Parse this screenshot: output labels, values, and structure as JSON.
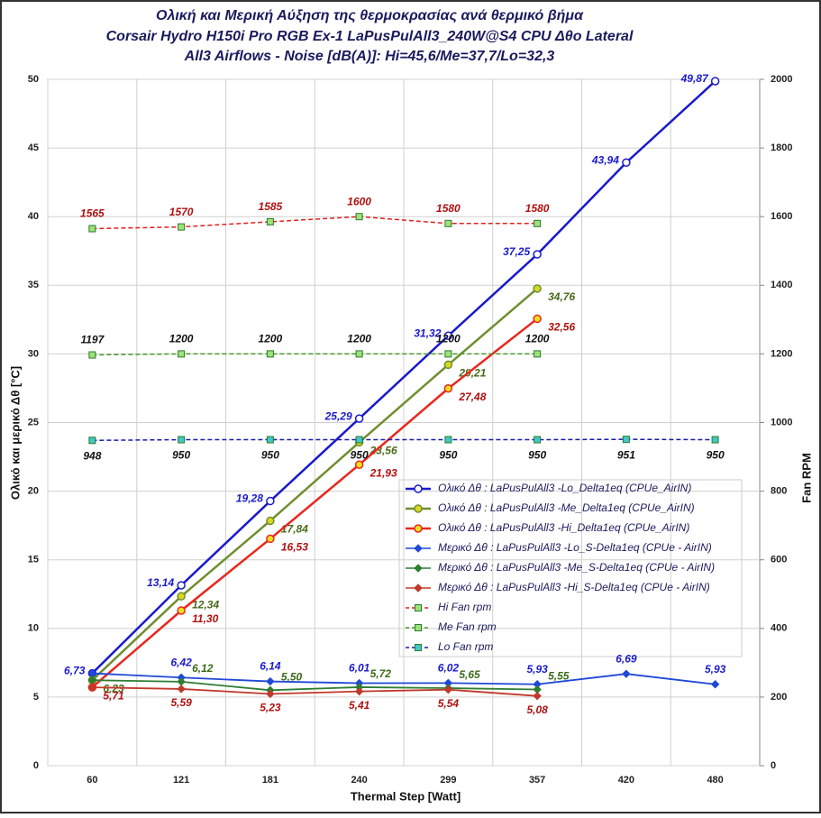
{
  "chart_data": {
    "type": "line",
    "title": [
      "Ολική και Μερική Αύξηση της θερμοκρασίας ανά θερμικό βήμα",
      "Corsair Hydro H150i Pro RGB  Ex-1   LaPusPulAll3_240W@S4  CPU  Δθο Lateral",
      "All3  Airflows  -  Noise [dB(A)]: Hi=45,6/Me=37,7/Lo=32,3"
    ],
    "xlabel": "Thermal Step [Watt]",
    "ylabel": "Ολικό και μερικό  Δθ  [°C]",
    "y2label": "Fan RPM",
    "categories": [
      "60",
      "121",
      "181",
      "240",
      "299",
      "357",
      "420",
      "480"
    ],
    "ylim": [
      0,
      50
    ],
    "yticks": [
      0,
      5,
      10,
      15,
      20,
      25,
      30,
      35,
      40,
      45,
      50
    ],
    "y2lim": [
      0,
      2000
    ],
    "y2ticks": [
      0,
      200,
      400,
      600,
      800,
      1000,
      1200,
      1400,
      1600,
      1800,
      2000
    ],
    "series": [
      {
        "name": "Ολικό Δθ : LaPusPulAll3 -Lo_Delta1eq (CPUe_AirIN)",
        "color": "#1a1acc",
        "marker": "circle",
        "values": [
          6.73,
          13.14,
          19.28,
          25.29,
          31.32,
          37.25,
          43.94,
          49.87
        ],
        "value_labels": [
          "6,73",
          "13,14",
          "19,28",
          "25,29",
          "31,32",
          "37,25",
          "43,94",
          "49,87"
        ]
      },
      {
        "name": "Ολικό Δθ : LaPusPulAll3 -Me_Delta1eq (CPUe_AirIN)",
        "color": "#6f8f2f",
        "marker": "circle",
        "values": [
          6.23,
          12.34,
          17.84,
          23.56,
          29.21,
          34.76,
          null,
          null
        ],
        "value_labels": [
          "6,23",
          "12,34",
          "17,84",
          "23,56",
          "29,21",
          "34,76",
          null,
          null
        ]
      },
      {
        "name": "Ολικό Δθ : LaPusPulAll3 -Hi_Delta1eq (CPUe_AirIN)",
        "color": "#e8281e",
        "marker": "circle",
        "values": [
          5.71,
          11.3,
          16.53,
          21.93,
          27.48,
          32.56,
          null,
          null
        ],
        "value_labels": [
          "5,71",
          "11,30",
          "16,53",
          "21,93",
          "27,48",
          "32,56",
          null,
          null
        ]
      },
      {
        "name": "Μερικό Δθ : LaPusPulAll3 -Lo_S-Delta1eq (CPUe - AirIN)",
        "color": "#1f48d6",
        "marker": "diamond",
        "values": [
          6.73,
          6.42,
          6.14,
          6.01,
          6.02,
          5.93,
          6.69,
          5.93
        ],
        "value_labels": [
          null,
          "6,42",
          "6,14",
          "6,01",
          "6,02",
          "5,93",
          "6,69",
          "5,93"
        ]
      },
      {
        "name": "Μερικό Δθ : LaPusPulAll3 -Me_S-Delta1eq (CPUe - AirIN)",
        "color": "#2e7d32",
        "marker": "diamond",
        "values": [
          6.23,
          6.12,
          5.5,
          5.72,
          5.65,
          5.55,
          null,
          null
        ],
        "value_labels": [
          null,
          "6,12",
          "5,50",
          "5,72",
          "5,65",
          "5,55",
          null,
          null
        ]
      },
      {
        "name": "Μερικό Δθ : LaPusPulAll3 -Hi_S-Delta1eq (CPUe - AirIN)",
        "color": "#c0392b",
        "marker": "diamond",
        "values": [
          5.71,
          5.59,
          5.23,
          5.41,
          5.54,
          5.08,
          null,
          null
        ],
        "value_labels": [
          null,
          "5,59",
          "5,23",
          "5,41",
          "5,54",
          "5,08",
          null,
          null
        ]
      },
      {
        "name": "Hi Fan  rpm",
        "color": "#e02020",
        "marker": "square",
        "dashed": true,
        "axis": "y2",
        "values": [
          1565,
          1570,
          1585,
          1600,
          1580,
          1580,
          null,
          null
        ]
      },
      {
        "name": "Me Fan  rpm",
        "color": "#4a9a2a",
        "marker": "square",
        "dashed": true,
        "axis": "y2",
        "values": [
          1197,
          1200,
          1200,
          1200,
          1200,
          1200,
          null,
          null
        ]
      },
      {
        "name": "Lo Fan  rpm",
        "color": "#1a1aaa",
        "marker": "square",
        "dashed": true,
        "axis": "y2",
        "values": [
          948,
          950,
          950,
          950,
          950,
          950,
          951,
          950
        ]
      }
    ]
  }
}
